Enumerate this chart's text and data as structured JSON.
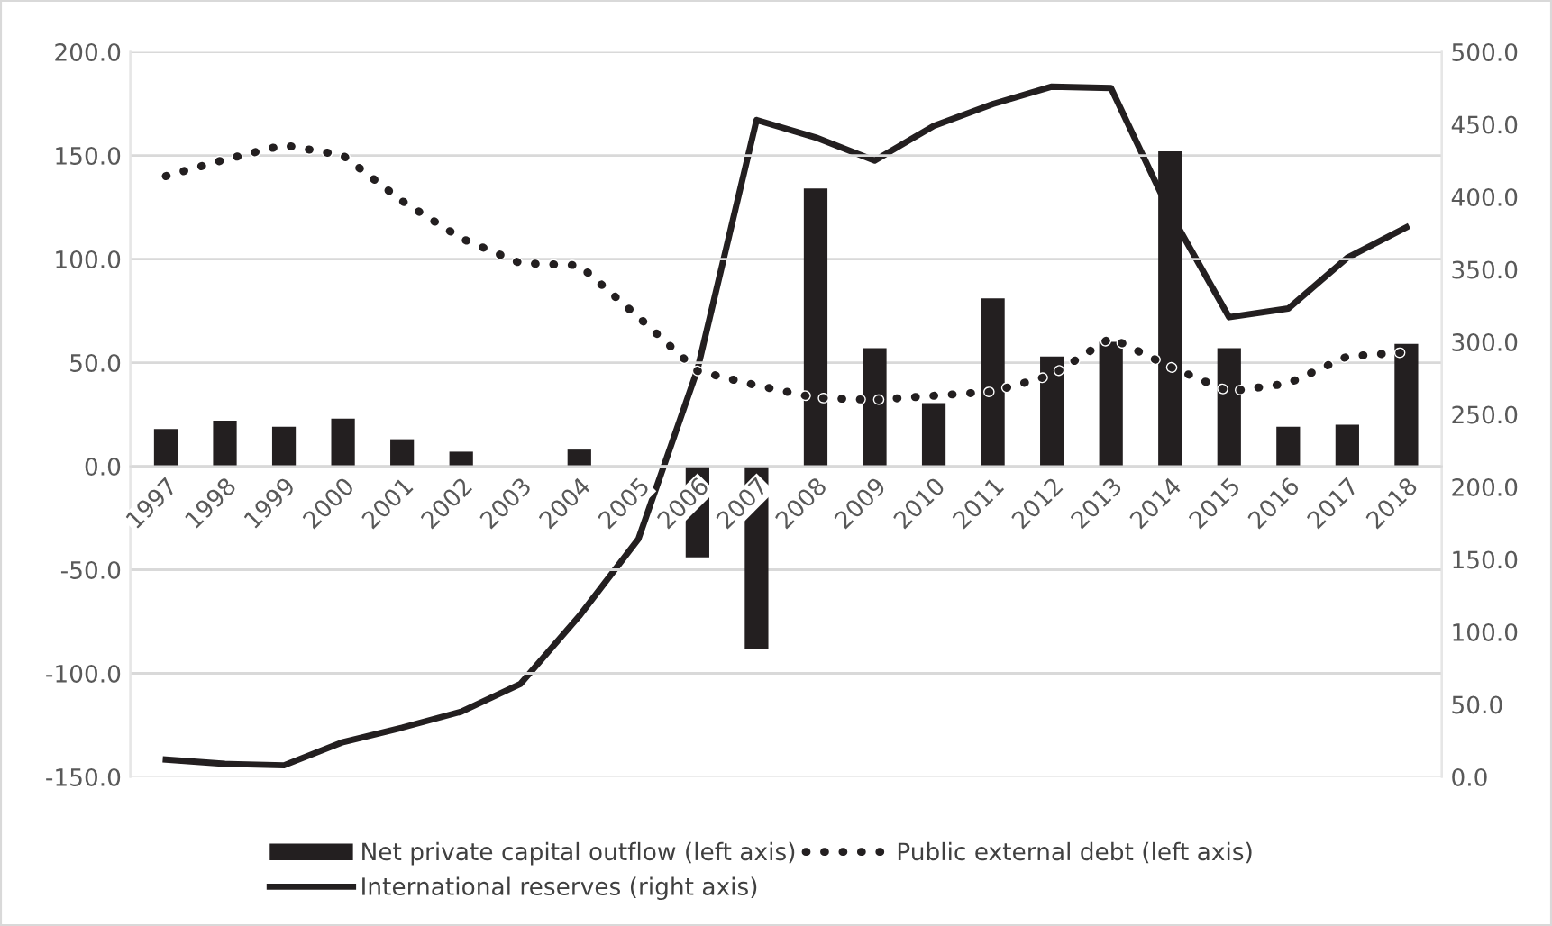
{
  "chart_data": {
    "type": "bar",
    "categories": [
      "1997",
      "1998",
      "1999",
      "2000",
      "2001",
      "2002",
      "2003",
      "2004",
      "2005",
      "2006",
      "2007",
      "2008",
      "2009",
      "2010",
      "2011",
      "2012",
      "2013",
      "2014",
      "2015",
      "2016",
      "2017",
      "2018"
    ],
    "series": [
      {
        "name": "Net private capital outflow (left axis)",
        "color": "#231f20",
        "values": [
          18,
          22,
          19,
          23,
          13,
          7,
          0,
          8,
          0,
          -44,
          -88,
          134,
          57,
          30.5,
          81,
          53,
          60,
          152,
          57,
          19,
          20,
          59
        ]
      },
      {
        "name": "Public external debt (left axis)",
        "type": "line",
        "line_style": "dotted",
        "color": "#231f20",
        "values": [
          140,
          148,
          155,
          150,
          128,
          110,
          98,
          97,
          72,
          46,
          39,
          33,
          32,
          34,
          36,
          44,
          62,
          48,
          36,
          40,
          53,
          55
        ]
      },
      {
        "name": "International reserves (right axis)",
        "type": "line",
        "line_style": "solid",
        "axis": "y2",
        "color": "#231f20",
        "values": [
          12,
          9,
          8,
          24,
          34,
          45,
          64,
          111,
          164,
          281,
          453,
          441,
          425,
          449,
          464,
          476,
          475,
          389,
          317,
          323,
          358,
          379
        ]
      }
    ],
    "ylim": [
      -150,
      200
    ],
    "yticks": [
      {
        "value": -150,
        "label": "-150.0"
      },
      {
        "value": -100,
        "label": "-100.0"
      },
      {
        "value": -50,
        "label": "-50.0"
      },
      {
        "value": 0,
        "label": "0.0"
      },
      {
        "value": 50,
        "label": "50.0"
      },
      {
        "value": 100,
        "label": "100.0"
      },
      {
        "value": 150,
        "label": "150.0"
      },
      {
        "value": 200,
        "label": "200.0"
      }
    ],
    "y2lim": [
      0,
      500
    ],
    "y2ticks": [
      {
        "value": 0,
        "label": "0.0"
      },
      {
        "value": 50,
        "label": "50.0"
      },
      {
        "value": 100,
        "label": "100.0"
      },
      {
        "value": 150,
        "label": "150.0"
      },
      {
        "value": 200,
        "label": "200.0"
      },
      {
        "value": 250,
        "label": "250.0"
      },
      {
        "value": 300,
        "label": "300.0"
      },
      {
        "value": 350,
        "label": "350.0"
      },
      {
        "value": 400,
        "label": "400.0"
      },
      {
        "value": 450,
        "label": "450.0"
      },
      {
        "value": 500,
        "label": "500.0"
      }
    ],
    "grid": "y",
    "legend": "bottom"
  }
}
